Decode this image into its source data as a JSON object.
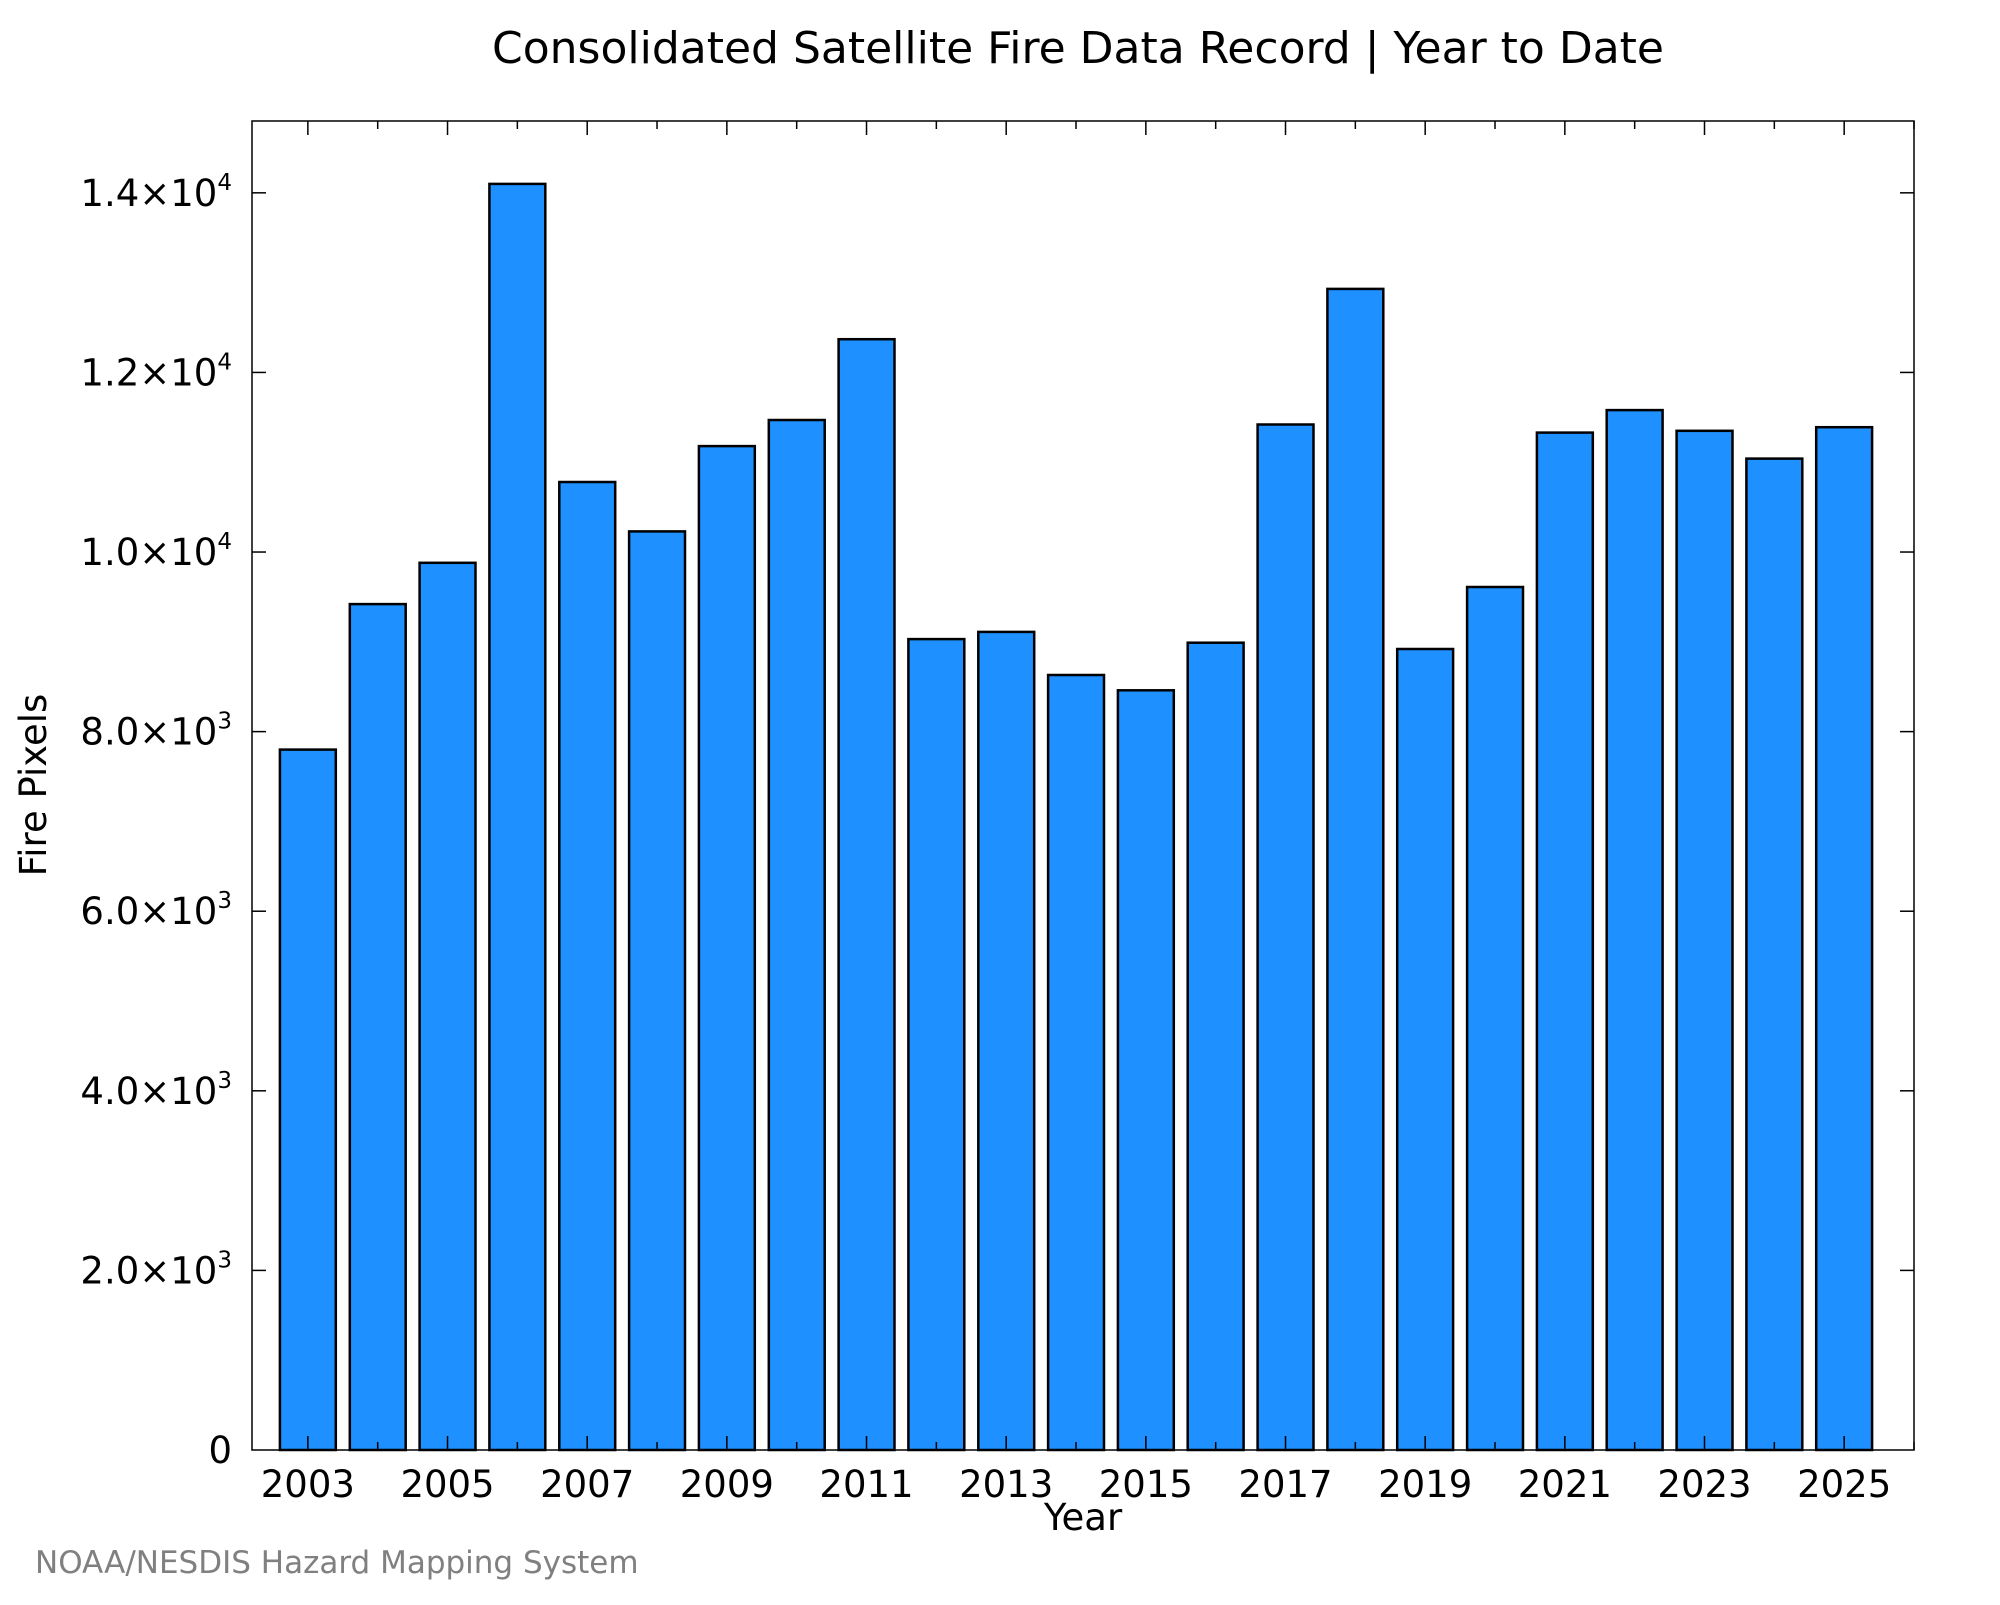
{
  "chart_data": {
    "type": "bar",
    "title": "Consolidated Satellite Fire Data Record | Year to Date",
    "xlabel": "Year",
    "ylabel": "Fire Pixels",
    "categories": [
      "2003",
      "2004",
      "2005",
      "2006",
      "2007",
      "2008",
      "2009",
      "2010",
      "2011",
      "2012",
      "2013",
      "2014",
      "2015",
      "2016",
      "2017",
      "2018",
      "2019",
      "2020",
      "2021",
      "2022",
      "2023",
      "2024",
      "2025"
    ],
    "values": [
      7800,
      9420,
      9880,
      14100,
      10780,
      10230,
      11180,
      11470,
      12370,
      9030,
      9110,
      8630,
      8460,
      8990,
      11420,
      12930,
      8920,
      9610,
      11330,
      11580,
      11350,
      11040,
      11390
    ],
    "ylim": [
      0,
      14800
    ],
    "xlim": [
      2002.2,
      2026.0
    ],
    "bar_color": "#1e90ff",
    "bar_edge_color": "#000000",
    "grid": false,
    "legend": "none",
    "x_tick_labels": [
      "2003",
      "2005",
      "2007",
      "2009",
      "2011",
      "2013",
      "2015",
      "2017",
      "2019",
      "2021",
      "2023",
      "2025"
    ],
    "y_ticks": [
      {
        "value": 0,
        "mantissa": "0",
        "exponent": ""
      },
      {
        "value": 2000,
        "mantissa": "2.0×10",
        "exponent": "3"
      },
      {
        "value": 4000,
        "mantissa": "4.0×10",
        "exponent": "3"
      },
      {
        "value": 6000,
        "mantissa": "6.0×10",
        "exponent": "3"
      },
      {
        "value": 8000,
        "mantissa": "8.0×10",
        "exponent": "3"
      },
      {
        "value": 10000,
        "mantissa": "1.0×10",
        "exponent": "4"
      },
      {
        "value": 12000,
        "mantissa": "1.2×10",
        "exponent": "4"
      },
      {
        "value": 14000,
        "mantissa": "1.4×10",
        "exponent": "4"
      }
    ]
  },
  "credit": "NOAA/NESDIS Hazard Mapping System"
}
